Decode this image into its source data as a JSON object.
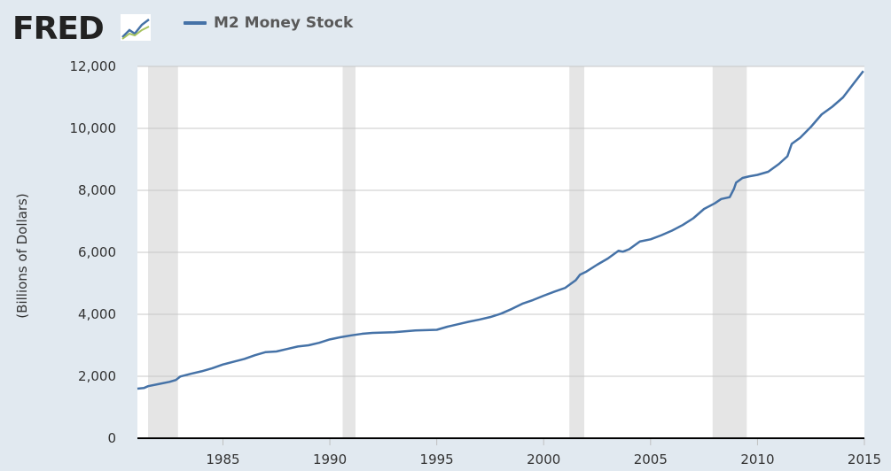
{
  "logo": {
    "text": "FRED"
  },
  "colors": {
    "background": "#e1e9f0",
    "plot": "#ffffff",
    "line": "#4572a7",
    "recession": "#e5e5e5",
    "grid": "#c8c8c8"
  },
  "chart_data": {
    "type": "line",
    "title": "",
    "xlabel": "",
    "ylabel": "(Billions of Dollars)",
    "xlim": [
      1981.0,
      2015.0
    ],
    "ylim": [
      0,
      12000
    ],
    "x_ticks": [
      1985,
      1990,
      1995,
      2000,
      2005,
      2010,
      2015
    ],
    "x_tick_labels": [
      "1985",
      "1990",
      "1995",
      "2000",
      "2005",
      "2010",
      "2015"
    ],
    "y_ticks": [
      0,
      2000,
      4000,
      6000,
      8000,
      10000,
      12000
    ],
    "y_tick_labels": [
      "0",
      "2,000",
      "4,000",
      "6,000",
      "8,000",
      "10,000",
      "12,000"
    ],
    "grid": true,
    "legend_position": "top-left",
    "recessions": [
      [
        1981.5,
        1982.9
      ],
      [
        1990.6,
        1991.2
      ],
      [
        2001.2,
        2001.9
      ],
      [
        2007.9,
        2009.5
      ]
    ],
    "series": [
      {
        "name": "M2 Money Stock",
        "x": [
          1981.0,
          1981.3,
          1981.5,
          1982.0,
          1982.5,
          1982.8,
          1983.0,
          1983.5,
          1984.0,
          1984.5,
          1985.0,
          1985.5,
          1986.0,
          1986.5,
          1987.0,
          1987.5,
          1988.0,
          1988.5,
          1989.0,
          1989.5,
          1990.0,
          1990.5,
          1991.0,
          1991.5,
          1992.0,
          1992.5,
          1993.0,
          1993.5,
          1994.0,
          1994.5,
          1995.0,
          1995.5,
          1996.0,
          1996.5,
          1997.0,
          1997.5,
          1998.0,
          1998.5,
          1999.0,
          1999.5,
          2000.0,
          2000.5,
          2001.0,
          2001.5,
          2001.7,
          2002.0,
          2002.5,
          2003.0,
          2003.5,
          2003.7,
          2004.0,
          2004.5,
          2005.0,
          2005.5,
          2006.0,
          2006.5,
          2007.0,
          2007.5,
          2008.0,
          2008.3,
          2008.7,
          2008.9,
          2009.0,
          2009.3,
          2009.6,
          2010.0,
          2010.5,
          2011.0,
          2011.4,
          2011.6,
          2011.8,
          2012.0,
          2012.5,
          2013.0,
          2013.5,
          2014.0,
          2014.5,
          2014.95
        ],
        "values": [
          1600,
          1620,
          1680,
          1750,
          1820,
          1880,
          1990,
          2080,
          2160,
          2260,
          2380,
          2470,
          2560,
          2680,
          2780,
          2800,
          2880,
          2960,
          3000,
          3080,
          3190,
          3260,
          3320,
          3370,
          3400,
          3410,
          3420,
          3450,
          3480,
          3490,
          3500,
          3600,
          3680,
          3760,
          3830,
          3910,
          4020,
          4170,
          4340,
          4460,
          4600,
          4730,
          4850,
          5100,
          5280,
          5380,
          5600,
          5800,
          6050,
          6020,
          6100,
          6350,
          6420,
          6550,
          6700,
          6880,
          7100,
          7400,
          7580,
          7720,
          7780,
          8050,
          8250,
          8400,
          8450,
          8500,
          8600,
          8850,
          9100,
          9500,
          9600,
          9700,
          10050,
          10450,
          10700,
          11000,
          11450,
          11850
        ]
      }
    ]
  }
}
